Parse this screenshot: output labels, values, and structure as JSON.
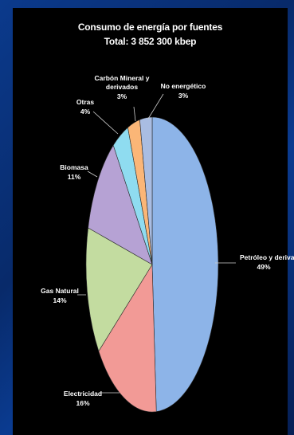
{
  "chart_data": {
    "type": "pie",
    "title": "Consumo de energía por fuentes",
    "subtitle": "Total: 3 852 300 kbep",
    "slices": [
      {
        "label": "Petróleo y derivados",
        "value": 49,
        "value_label": "49%",
        "color": "#8db4e8"
      },
      {
        "label": "Electricidad",
        "value": 16,
        "value_label": "16%",
        "color": "#f29a96"
      },
      {
        "label": "Gas Natural",
        "value": 14,
        "value_label": "14%",
        "color": "#c3dca0"
      },
      {
        "label": "Biomasa",
        "value": 11,
        "value_label": "11%",
        "color": "#b6a2d4"
      },
      {
        "label": "Otras",
        "value": 4,
        "value_label": "4%",
        "color": "#8fdcf0"
      },
      {
        "label": "Carbón Mineral y derivados",
        "value": 3,
        "value_label": "3%",
        "color": "#fbb677"
      },
      {
        "label": "No energético",
        "value": 3,
        "value_label": "3%",
        "color": "#a9bde2"
      }
    ],
    "legend": "none"
  }
}
